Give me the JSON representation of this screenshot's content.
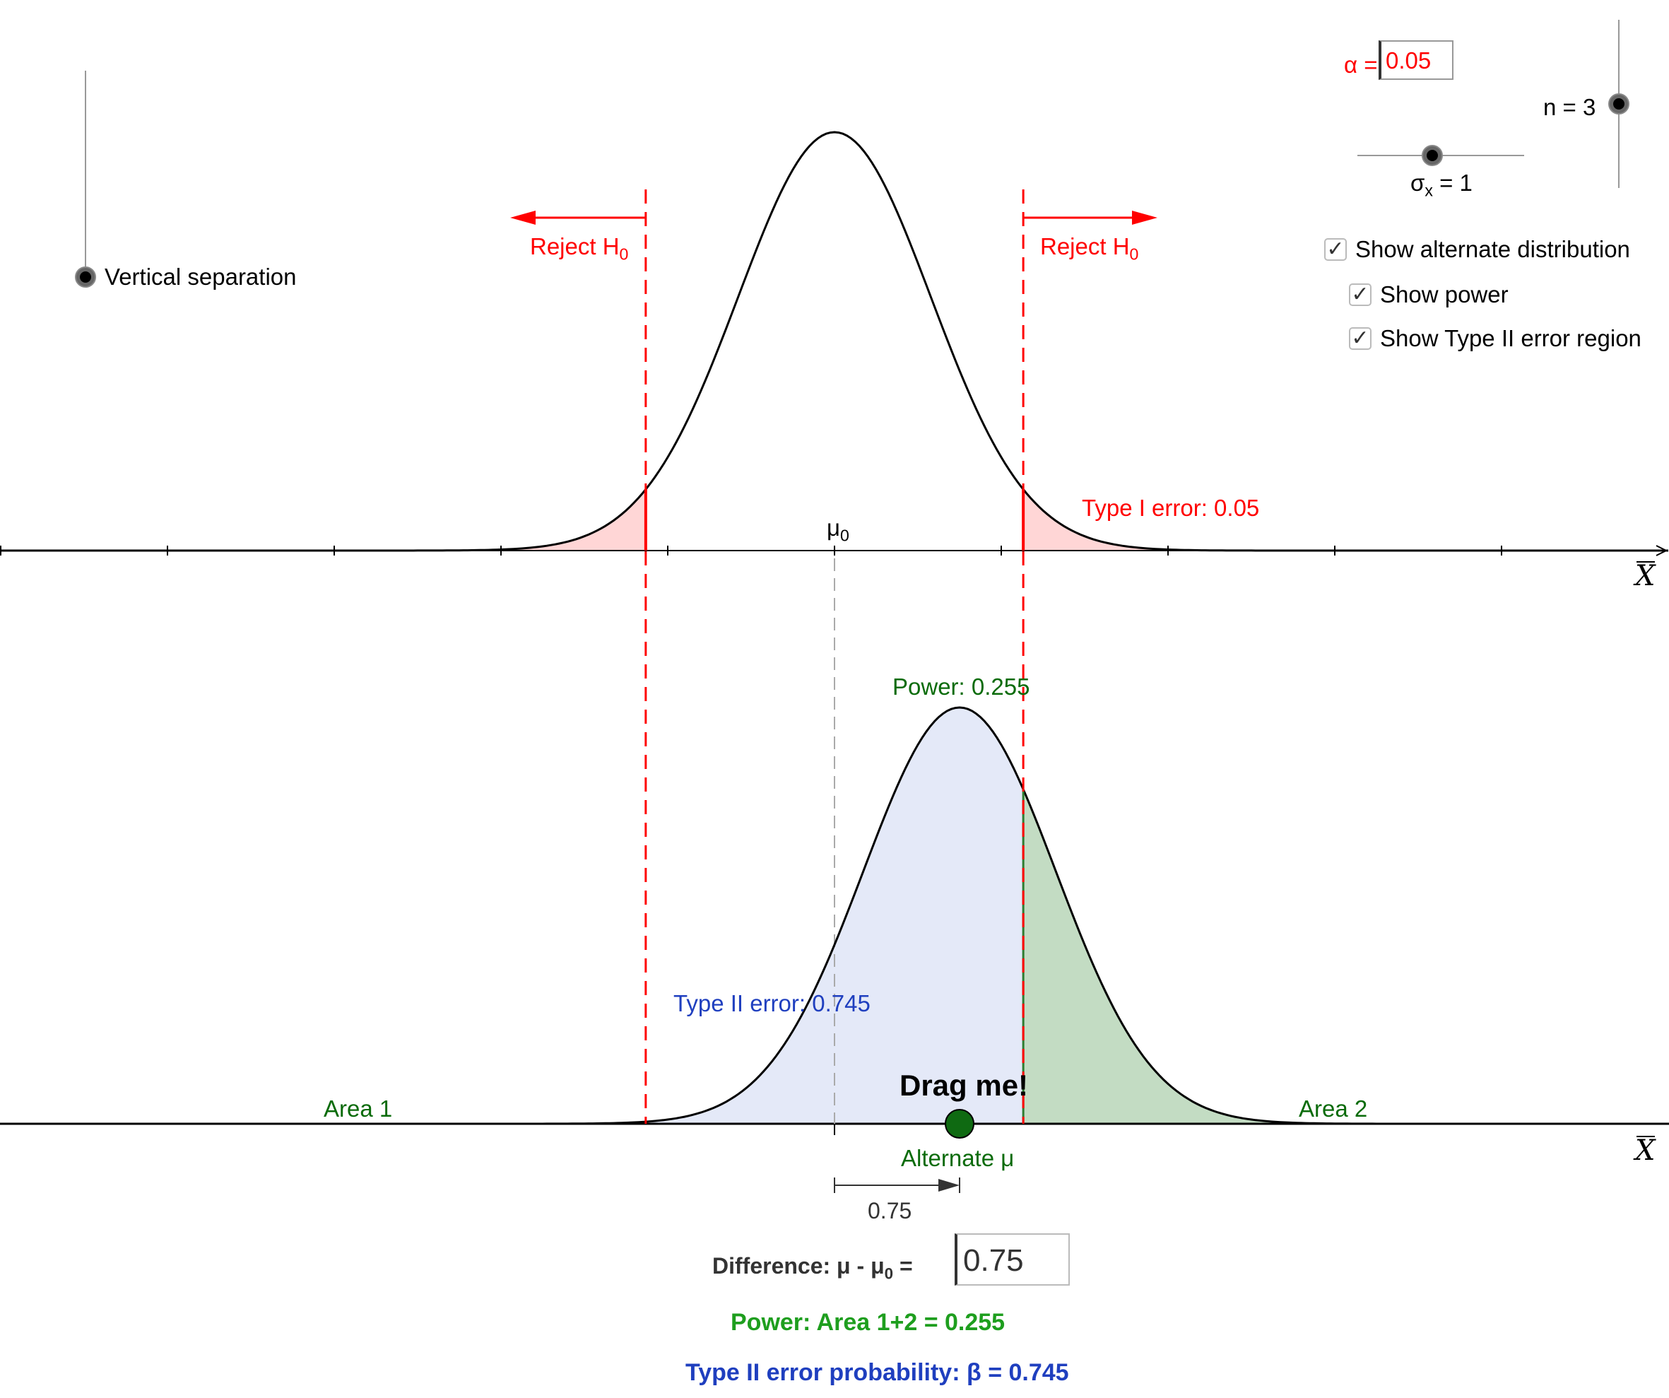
{
  "controls": {
    "alpha": {
      "label": "α =",
      "value": "0.05"
    },
    "n_slider": {
      "label": "n = 3",
      "value": 3
    },
    "sigma_slider": {
      "label_main": "σ",
      "label_sub": "x",
      "label_rest": " = 1",
      "value": 1
    },
    "vertical_separation": {
      "label": "Vertical separation"
    },
    "checkboxes": [
      {
        "label": "Show alternate distribution",
        "checked": true
      },
      {
        "label": "Show power",
        "checked": true
      },
      {
        "label": "Show Type II error region",
        "checked": true
      }
    ]
  },
  "top_plot": {
    "reject_left": {
      "text": "Reject H",
      "sub": "0"
    },
    "reject_right": {
      "text": "Reject H",
      "sub": "0"
    },
    "type1": "Type I error: 0.05",
    "mu0": {
      "text": "μ",
      "sub": "0"
    },
    "axis_label": "X"
  },
  "bottom_plot": {
    "power_label": "Power: 0.255",
    "type2_label": "Type II error: 0.745",
    "area1": "Area 1",
    "area2": "Area 2",
    "drag": "Drag me!",
    "alt_mu": "Alternate μ",
    "diff_arrow_value": "0.75",
    "axis_label": "X"
  },
  "summary": {
    "difference_label": {
      "text": "Difference: μ - μ",
      "sub": "0",
      "tail": " ="
    },
    "difference_value": "0.75",
    "power": "Power: Area 1+2 = 0.255",
    "beta": "Type II error probability: β = 0.745"
  },
  "chart_data": {
    "type": "area",
    "distribution": "normal",
    "null_mean": 0,
    "alternate_mean": 0.75,
    "sigma": 1,
    "n": 3,
    "alpha": 0.05,
    "critical_values": [
      -1.132,
      1.132
    ],
    "power": 0.255,
    "beta": 0.745,
    "x_range": [
      -5,
      5
    ],
    "colors": {
      "reject": "#ff0000",
      "type1_fill": "#ffd6d6",
      "type2_fill": "#e4e9f8",
      "power_fill": "#c3dcc3",
      "power_text": "#0a6b0a",
      "type2_text": "#1f3fbf"
    }
  }
}
